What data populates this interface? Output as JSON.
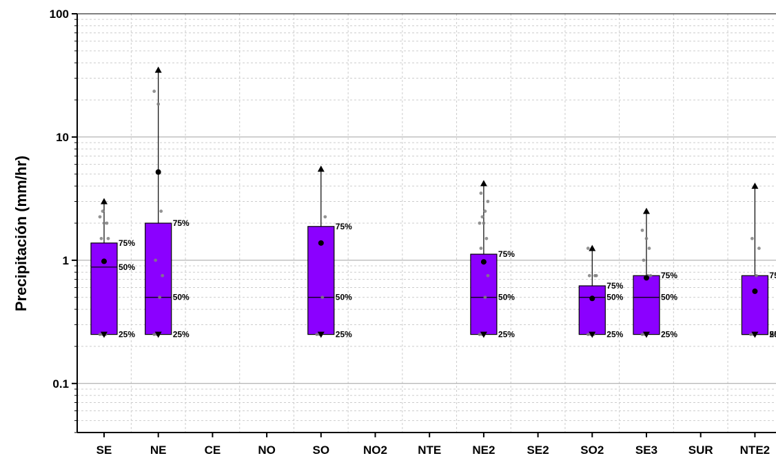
{
  "chart_data": {
    "type": "box",
    "title": "",
    "xlabel": "",
    "ylabel": "Precipitación (mm/hr)",
    "yscale": "log",
    "ylim": [
      0.04,
      100
    ],
    "yticks": [
      0.1,
      1,
      10,
      100
    ],
    "ytick_labels": [
      "0.1",
      "1",
      "10",
      "100"
    ],
    "grid": true,
    "colors": {
      "box_fill": "#8B00FF",
      "box_edge": "#000000",
      "points": "#808080",
      "grid_major": "#a0a0a0",
      "grid_minor": "#cccccc"
    },
    "percentile_labels": {
      "p75": "75%",
      "p50": "50%",
      "p25": "25%"
    },
    "categories": [
      "SE",
      "NE",
      "CE",
      "NO",
      "SO",
      "NO2",
      "NTE",
      "NE2",
      "SE2",
      "SO2",
      "SE3",
      "SUR",
      "NTE2"
    ],
    "boxes": [
      {
        "category": "SE",
        "q1": 0.25,
        "median": 0.88,
        "q3": 1.38,
        "mean": 0.98,
        "min": 0.25,
        "max": 3.0,
        "points": [
          0.25,
          0.25,
          0.25,
          1.5,
          1.5,
          2.0,
          2.0,
          2.25,
          2.5
        ]
      },
      {
        "category": "NE",
        "q1": 0.25,
        "median": 0.5,
        "q3": 2.0,
        "mean": 5.2,
        "min": 0.25,
        "max": 35,
        "points": [
          0.25,
          0.25,
          0.5,
          0.75,
          1.0,
          2.5,
          18.5,
          23.5
        ]
      },
      {
        "category": "CE"
      },
      {
        "category": "NO"
      },
      {
        "category": "SO",
        "q1": 0.25,
        "median": 0.5,
        "q3": 1.88,
        "mean": 1.38,
        "min": 0.25,
        "max": 5.5,
        "points": [
          0.25,
          0.25,
          0.5,
          2.25
        ]
      },
      {
        "category": "NO2"
      },
      {
        "category": "NTE"
      },
      {
        "category": "NE2",
        "q1": 0.25,
        "median": 0.5,
        "q3": 1.12,
        "mean": 0.97,
        "min": 0.25,
        "max": 4.2,
        "points": [
          0.25,
          0.25,
          0.5,
          0.75,
          1.25,
          1.5,
          2.0,
          2.0,
          2.25,
          2.5,
          3.0,
          3.5
        ]
      },
      {
        "category": "SE2"
      },
      {
        "category": "SO2",
        "q1": 0.25,
        "median": 0.5,
        "q3": 0.62,
        "mean": 0.49,
        "min": 0.25,
        "max": 1.25,
        "points": [
          0.25,
          0.25,
          0.25,
          0.75,
          0.75,
          0.75,
          1.25,
          1.25
        ]
      },
      {
        "category": "SE3",
        "q1": 0.25,
        "median": 0.5,
        "q3": 0.75,
        "mean": 0.72,
        "min": 0.25,
        "max": 2.5,
        "points": [
          0.25,
          0.25,
          0.75,
          0.75,
          1.0,
          1.25,
          1.5,
          1.75
        ]
      },
      {
        "category": "SUR"
      },
      {
        "category": "NTE2",
        "q1": 0.25,
        "median": 0.25,
        "q3": 0.75,
        "mean": 0.56,
        "min": 0.25,
        "max": 4.0,
        "points": [
          0.25,
          0.25,
          0.75,
          1.25,
          1.5
        ]
      }
    ]
  }
}
